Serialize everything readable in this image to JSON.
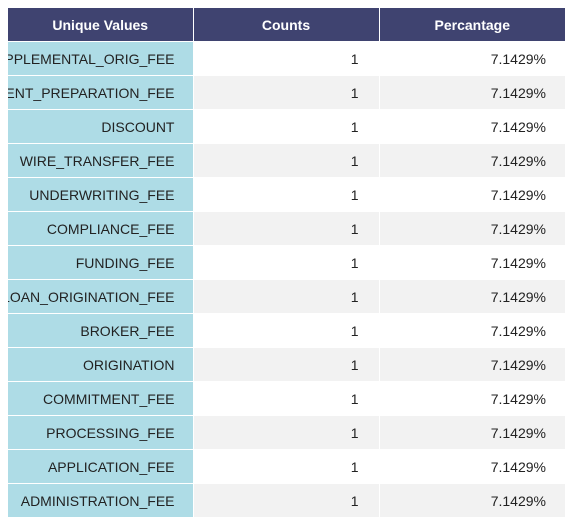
{
  "table": {
    "headers": {
      "values": "Unique Values",
      "counts": "Counts",
      "percentage": "Percantage"
    },
    "rows": [
      {
        "value": "SUPPLEMENTAL_ORIG_FEE",
        "count": "1",
        "percentage": "7.1429%"
      },
      {
        "value": "DOCUMENT_PREPARATION_FEE",
        "count": "1",
        "percentage": "7.1429%"
      },
      {
        "value": "DISCOUNT",
        "count": "1",
        "percentage": "7.1429%"
      },
      {
        "value": "WIRE_TRANSFER_FEE",
        "count": "1",
        "percentage": "7.1429%"
      },
      {
        "value": "UNDERWRITING_FEE",
        "count": "1",
        "percentage": "7.1429%"
      },
      {
        "value": "COMPLIANCE_FEE",
        "count": "1",
        "percentage": "7.1429%"
      },
      {
        "value": "FUNDING_FEE",
        "count": "1",
        "percentage": "7.1429%"
      },
      {
        "value": "LOAN_ORIGINATION_FEE",
        "count": "1",
        "percentage": "7.1429%"
      },
      {
        "value": "BROKER_FEE",
        "count": "1",
        "percentage": "7.1429%"
      },
      {
        "value": "ORIGINATION",
        "count": "1",
        "percentage": "7.1429%"
      },
      {
        "value": "COMMITMENT_FEE",
        "count": "1",
        "percentage": "7.1429%"
      },
      {
        "value": "PROCESSING_FEE",
        "count": "1",
        "percentage": "7.1429%"
      },
      {
        "value": "APPLICATION_FEE",
        "count": "1",
        "percentage": "7.1429%"
      },
      {
        "value": "ADMINISTRATION_FEE",
        "count": "1",
        "percentage": "7.1429%"
      }
    ]
  },
  "colors": {
    "header_bg": "#3f4370",
    "value_cell_bg": "#aedce6",
    "stripe_bg": "#f2f2f2"
  }
}
